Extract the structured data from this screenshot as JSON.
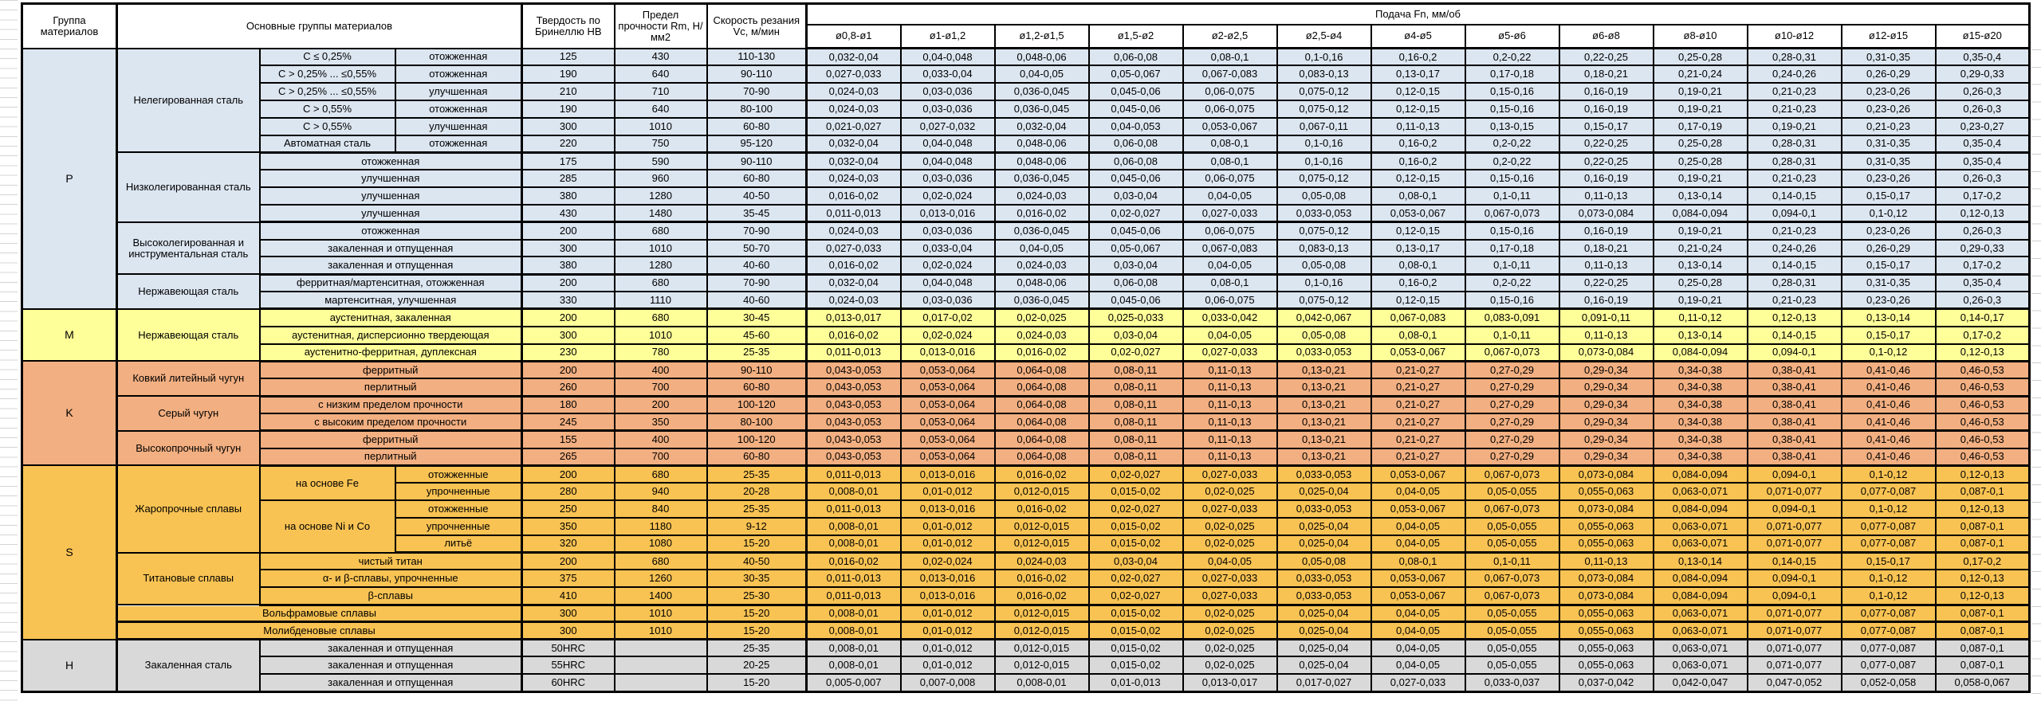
{
  "header": {
    "col_group": "Группа материалов",
    "col_main": "Основные группы материалов",
    "col_hardness": "Твердость по Бринеллю НВ",
    "col_strength": "Предел прочности Rm, Н/мм2",
    "col_speed": "Скорость резания Vc, м/мин",
    "col_feed": "Подача Fn, мм/об",
    "diameters": [
      "ø0,8-ø1",
      "ø1-ø1,2",
      "ø1,2-ø1,5",
      "ø1,5-ø2",
      "ø2-ø2,5",
      "ø2,5-ø4",
      "ø4-ø5",
      "ø5-ø6",
      "ø6-ø8",
      "ø8-ø10",
      "ø10-ø12",
      "ø12-ø15",
      "ø15-ø20"
    ]
  },
  "patterns": {
    "A": [
      "0,032-0,04",
      "0,04-0,048",
      "0,048-0,06",
      "0,06-0,08",
      "0,08-0,1",
      "0,1-0,16",
      "0,16-0,2",
      "0,2-0,22",
      "0,22-0,25",
      "0,25-0,28",
      "0,28-0,31",
      "0,31-0,35",
      "0,35-0,4"
    ],
    "B": [
      "0,027-0,033",
      "0,033-0,04",
      "0,04-0,05",
      "0,05-0,067",
      "0,067-0,083",
      "0,083-0,13",
      "0,13-0,17",
      "0,17-0,18",
      "0,18-0,21",
      "0,21-0,24",
      "0,24-0,26",
      "0,26-0,29",
      "0,29-0,33"
    ],
    "C": [
      "0,024-0,03",
      "0,03-0,036",
      "0,036-0,045",
      "0,045-0,06",
      "0,06-0,075",
      "0,075-0,12",
      "0,12-0,15",
      "0,15-0,16",
      "0,16-0,19",
      "0,19-0,21",
      "0,21-0,23",
      "0,23-0,26",
      "0,26-0,3"
    ],
    "D": [
      "0,021-0,027",
      "0,027-0,032",
      "0,032-0,04",
      "0,04-0,053",
      "0,053-0,067",
      "0,067-0,11",
      "0,11-0,13",
      "0,13-0,15",
      "0,15-0,17",
      "0,17-0,19",
      "0,19-0,21",
      "0,21-0,23",
      "0,23-0,27"
    ],
    "E": [
      "0,016-0,02",
      "0,02-0,024",
      "0,024-0,03",
      "0,03-0,04",
      "0,04-0,05",
      "0,05-0,08",
      "0,08-0,1",
      "0,1-0,11",
      "0,11-0,13",
      "0,13-0,14",
      "0,14-0,15",
      "0,15-0,17",
      "0,17-0,2"
    ],
    "F": [
      "0,011-0,013",
      "0,013-0,016",
      "0,016-0,02",
      "0,02-0,027",
      "0,027-0,033",
      "0,033-0,053",
      "0,053-0,067",
      "0,067-0,073",
      "0,073-0,084",
      "0,084-0,094",
      "0,094-0,1",
      "0,1-0,12",
      "0,12-0,13"
    ],
    "G": [
      "0,013-0,017",
      "0,017-0,02",
      "0,02-0,025",
      "0,025-0,033",
      "0,033-0,042",
      "0,042-0,067",
      "0,067-0,083",
      "0,083-0,091",
      "0,091-0,11",
      "0,11-0,12",
      "0,12-0,13",
      "0,13-0,14",
      "0,14-0,17"
    ],
    "K": [
      "0,043-0,053",
      "0,053-0,064",
      "0,064-0,08",
      "0,08-0,11",
      "0,11-0,13",
      "0,13-0,21",
      "0,21-0,27",
      "0,27-0,29",
      "0,29-0,34",
      "0,34-0,38",
      "0,38-0,41",
      "0,41-0,46",
      "0,46-0,53"
    ],
    "S": [
      "0,008-0,01",
      "0,01-0,012",
      "0,012-0,015",
      "0,015-0,02",
      "0,02-0,025",
      "0,025-0,04",
      "0,04-0,05",
      "0,05-0,055",
      "0,055-0,063",
      "0,063-0,071",
      "0,071-0,077",
      "0,077-0,087",
      "0,087-0,1"
    ],
    "H": [
      "0,005-0,007",
      "0,007-0,008",
      "0,008-0,01",
      "0,01-0,013",
      "0,013-0,017",
      "0,017-0,027",
      "0,027-0,033",
      "0,033-0,037",
      "0,037-0,042",
      "0,042-0,047",
      "0,047-0,052",
      "0,052-0,058",
      "0,058-0,067"
    ]
  },
  "groups": [
    {
      "label": "P",
      "color": "#DCE6F1",
      "rows": [
        {
          "family": "Нелегированная сталь",
          "fspan": 6,
          "sub": "C ≤ 0,25%",
          "cond": "отожженная",
          "hb": "125",
          "rm": "430",
          "vc": "110-130",
          "feeds": "A"
        },
        {
          "sub": "C > 0,25% ... ≤0,55%",
          "cond": "отожженная",
          "hb": "190",
          "rm": "640",
          "vc": "90-110",
          "feeds": "B"
        },
        {
          "sub": "C > 0,25% ... ≤0,55%",
          "cond": "улучшенная",
          "hb": "210",
          "rm": "710",
          "vc": "70-90",
          "feeds": "C"
        },
        {
          "sub": "C > 0,55%",
          "cond": "отожженная",
          "hb": "190",
          "rm": "640",
          "vc": "80-100",
          "feeds": "C"
        },
        {
          "sub": "C > 0,55%",
          "cond": "улучшенная",
          "hb": "300",
          "rm": "1010",
          "vc": "60-80",
          "feeds": "D"
        },
        {
          "sub": "Автоматная сталь",
          "cond": "отожженная",
          "hb": "220",
          "rm": "750",
          "vc": "95-120",
          "feeds": "A",
          "end": true
        },
        {
          "family": "Низколегированная сталь",
          "fspan": 4,
          "wide": "отожженная",
          "hb": "175",
          "rm": "590",
          "vc": "90-110",
          "feeds": "A"
        },
        {
          "wide": "улучшенная",
          "hb": "285",
          "rm": "960",
          "vc": "60-80",
          "feeds": "C"
        },
        {
          "wide": "улучшенная",
          "hb": "380",
          "rm": "1280",
          "vc": "40-50",
          "feeds": "E"
        },
        {
          "wide": "улучшенная",
          "hb": "430",
          "rm": "1480",
          "vc": "35-45",
          "feeds": "F",
          "end": true
        },
        {
          "family": "Высоколегированная и инструментальная сталь",
          "fspan": 3,
          "wide": "отожженная",
          "hb": "200",
          "rm": "680",
          "vc": "70-90",
          "feeds": "C"
        },
        {
          "wide": "закаленная и отпущенная",
          "hb": "300",
          "rm": "1010",
          "vc": "50-70",
          "feeds": "B"
        },
        {
          "wide": "закаленная и отпущенная",
          "hb": "380",
          "rm": "1280",
          "vc": "40-60",
          "feeds": "E",
          "end": true
        },
        {
          "family": "Нержавеющая сталь",
          "fspan": 2,
          "wide": "ферритная/мартенситная, отожженная",
          "hb": "200",
          "rm": "680",
          "vc": "70-90",
          "feeds": "A"
        },
        {
          "wide": "мартенситная, улучшенная",
          "hb": "330",
          "rm": "1110",
          "vc": "40-60",
          "feeds": "C",
          "end": true
        }
      ]
    },
    {
      "label": "M",
      "color": "#FFFF99",
      "rows": [
        {
          "family": "Нержавеющая сталь",
          "fspan": 3,
          "wide": "аустенитная, закаленная",
          "hb": "200",
          "rm": "680",
          "vc": "30-45",
          "feeds": "G"
        },
        {
          "wide": "аустенитная, дисперсионно твердеющая",
          "hb": "300",
          "rm": "1010",
          "vc": "45-60",
          "feeds": "E"
        },
        {
          "wide": "аустенитно-ферритная, дуплексная",
          "hb": "230",
          "rm": "780",
          "vc": "25-35",
          "feeds": "F",
          "end": true
        }
      ]
    },
    {
      "label": "K",
      "color": "#F2AF81",
      "rows": [
        {
          "family": "Ковкий литейный чугун",
          "fspan": 2,
          "wide": "ферритный",
          "hb": "200",
          "rm": "400",
          "vc": "90-110",
          "feeds": "K"
        },
        {
          "wide": "перлитный",
          "hb": "260",
          "rm": "700",
          "vc": "60-80",
          "feeds": "K",
          "end": true
        },
        {
          "family": "Серый чугун",
          "fspan": 2,
          "wide": "с низким пределом прочности",
          "hb": "180",
          "rm": "200",
          "vc": "100-120",
          "feeds": "K"
        },
        {
          "wide": "с высоким пределом прочности",
          "hb": "245",
          "rm": "350",
          "vc": "80-100",
          "feeds": "K",
          "end": true
        },
        {
          "family": "Высокопрочный чугун",
          "fspan": 2,
          "wide": "ферритный",
          "hb": "155",
          "rm": "400",
          "vc": "100-120",
          "feeds": "K"
        },
        {
          "wide": "перлитный",
          "hb": "265",
          "rm": "700",
          "vc": "60-80",
          "feeds": "K",
          "end": true
        }
      ]
    },
    {
      "label": "S",
      "color": "#F9C353",
      "rows": [
        {
          "family": "Жаропрочные сплавы",
          "fspan": 5,
          "sub": "на основе Fe",
          "subspan": 2,
          "cond": "отожженные",
          "hb": "200",
          "rm": "680",
          "vc": "25-35",
          "feeds": "F"
        },
        {
          "cond": "упрочненные",
          "hb": "280",
          "rm": "940",
          "vc": "20-28",
          "feeds": "S"
        },
        {
          "sub": "на основе Ni и Co",
          "subspan": 3,
          "cond": "отожженные",
          "hb": "250",
          "rm": "840",
          "vc": "25-35",
          "feeds": "F"
        },
        {
          "cond": "упрочненные",
          "hb": "350",
          "rm": "1180",
          "vc": "9-12",
          "feeds": "S"
        },
        {
          "cond": "литьё",
          "hb": "320",
          "rm": "1080",
          "vc": "15-20",
          "feeds": "S",
          "end": true
        },
        {
          "family": "Титановые сплавы",
          "fspan": 3,
          "wide": "чистый титан",
          "hb": "200",
          "rm": "680",
          "vc": "40-50",
          "feeds": "E"
        },
        {
          "wide": "α- и β-сплавы, упрочненные",
          "hb": "375",
          "rm": "1260",
          "vc": "30-35",
          "feeds": "F"
        },
        {
          "wide": "β-сплавы",
          "hb": "410",
          "rm": "1400",
          "vc": "25-30",
          "feeds": "F",
          "end": true
        },
        {
          "full": "Вольфрамовые сплавы",
          "hb": "300",
          "rm": "1010",
          "vc": "15-20",
          "feeds": "S",
          "end": true
        },
        {
          "full": "Молибденовые сплавы",
          "hb": "300",
          "rm": "1010",
          "vc": "15-20",
          "feeds": "S",
          "end": true
        }
      ]
    },
    {
      "label": "H",
      "color": "#D9D9D9",
      "rows": [
        {
          "family": "Закаленная сталь",
          "fspan": 3,
          "wide": "закаленная и отпущенная",
          "hb": "50HRC",
          "rm": "",
          "vc": "25-35",
          "feeds": "S"
        },
        {
          "wide": "закаленная и отпущенная",
          "hb": "55HRC",
          "rm": "",
          "vc": "20-25",
          "feeds": "S"
        },
        {
          "wide": "закаленная и отпущенная",
          "hb": "60HRC",
          "rm": "",
          "vc": "15-20",
          "feeds": "H",
          "end": true
        }
      ]
    }
  ]
}
